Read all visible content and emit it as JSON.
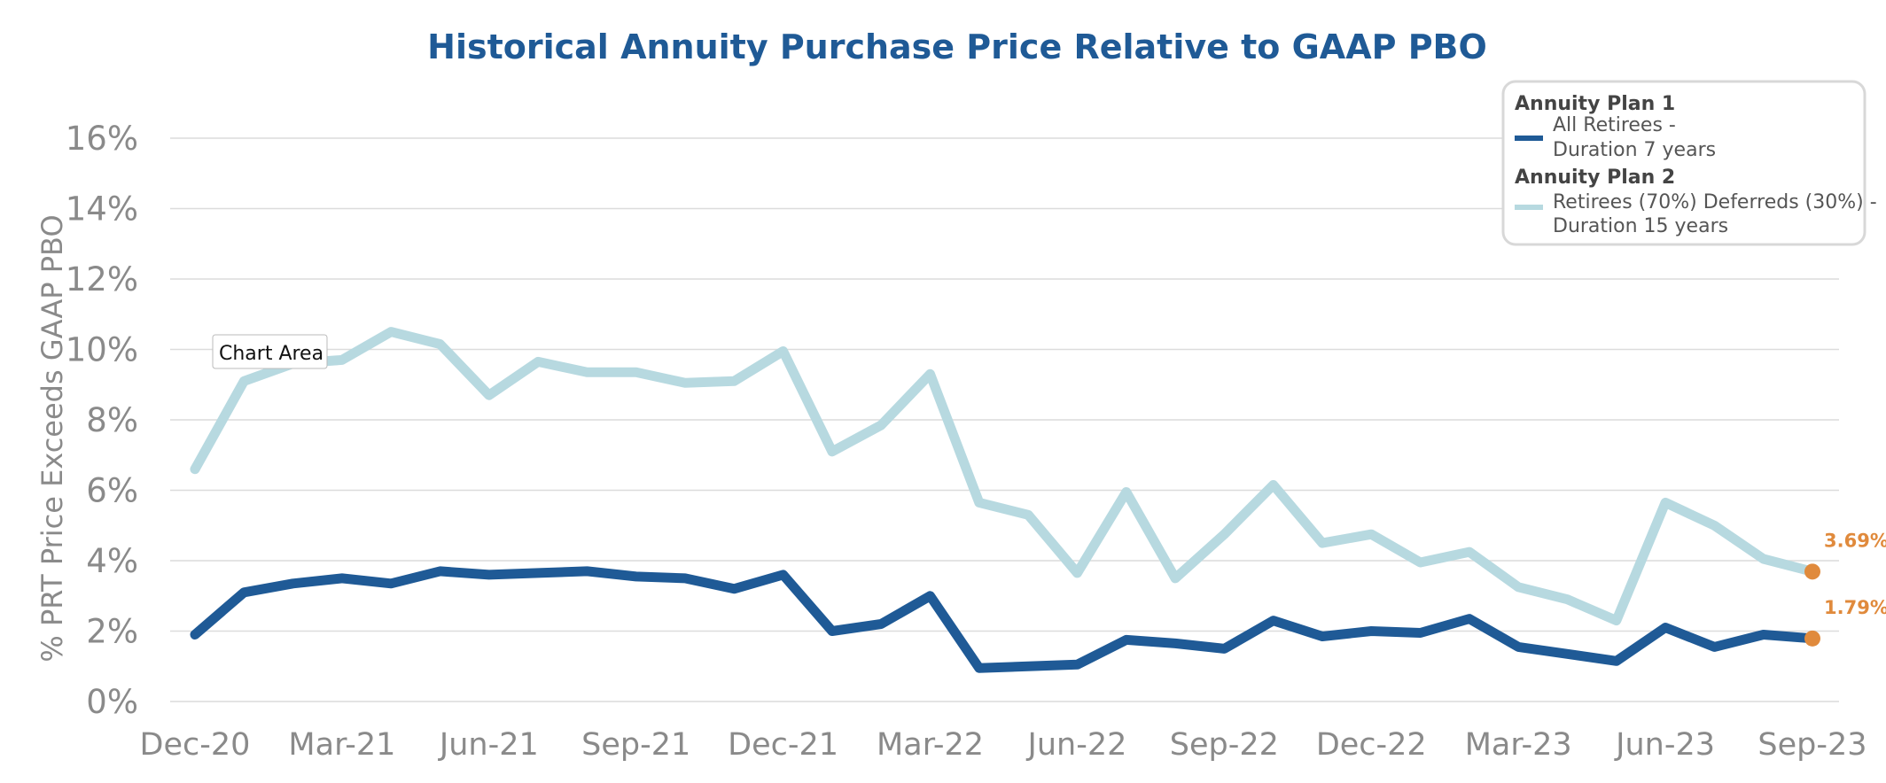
{
  "chart_data": {
    "type": "line",
    "title": "Historical Annuity Purchase Price Relative to GAAP PBO",
    "xlabel": "",
    "ylabel": "% PRT Price Exceeds GAAP PBO",
    "ylim": [
      0,
      16
    ],
    "yticks": [
      0,
      2,
      4,
      6,
      8,
      10,
      12,
      14,
      16
    ],
    "ytick_labels": [
      "0%",
      "2%",
      "4%",
      "6%",
      "8%",
      "10%",
      "12%",
      "14%",
      "16%"
    ],
    "xtick_labels": [
      "Dec-20",
      "Mar-21",
      "Jun-21",
      "Sep-21",
      "Dec-21",
      "Mar-22",
      "Jun-22",
      "Sep-22",
      "Dec-22",
      "Mar-23",
      "Jun-23",
      "Sep-23"
    ],
    "grid": true,
    "legend_position": "top-right",
    "x": [
      "Dec-20",
      "Jan-21",
      "Feb-21",
      "Mar-21",
      "Apr-21",
      "May-21",
      "Jun-21",
      "Jul-21",
      "Aug-21",
      "Sep-21",
      "Oct-21",
      "Nov-21",
      "Dec-21",
      "Jan-22",
      "Feb-22",
      "Mar-22",
      "Apr-22",
      "May-22",
      "Jun-22",
      "Jul-22",
      "Aug-22",
      "Sep-22",
      "Oct-22",
      "Nov-22",
      "Dec-22",
      "Jan-23",
      "Feb-23",
      "Mar-23",
      "Apr-23",
      "May-23",
      "Jun-23",
      "Jul-23",
      "Aug-23",
      "Sep-23"
    ],
    "series": [
      {
        "name": "Annuity Plan 1",
        "legend_heading": "Annuity Plan 1",
        "legend_lines": [
          "All Retirees -",
          "Duration 7 years"
        ],
        "color": "#1f5a96",
        "values": [
          1.9,
          3.1,
          3.35,
          3.5,
          3.35,
          3.7,
          3.6,
          3.65,
          3.7,
          3.55,
          3.5,
          3.2,
          3.6,
          2.0,
          2.2,
          3.0,
          0.95,
          1.0,
          1.05,
          1.75,
          1.65,
          1.5,
          2.3,
          1.85,
          2.0,
          1.95,
          2.35,
          1.55,
          1.35,
          1.15,
          2.1,
          1.55,
          1.9,
          1.79
        ],
        "end_label": "1.79%"
      },
      {
        "name": "Annuity Plan 2",
        "legend_heading": "Annuity Plan 2",
        "legend_lines": [
          "Retirees (70%) Deferreds (30%) -",
          "Duration 15 years"
        ],
        "color": "#b7d9e0",
        "values": [
          6.6,
          9.1,
          9.6,
          9.7,
          10.5,
          10.15,
          8.7,
          9.65,
          9.35,
          9.35,
          9.05,
          9.1,
          9.95,
          7.1,
          7.85,
          9.3,
          5.65,
          5.3,
          3.65,
          5.95,
          3.5,
          4.75,
          6.15,
          4.5,
          4.75,
          3.95,
          4.25,
          3.25,
          2.9,
          2.3,
          5.65,
          5.0,
          4.05,
          3.69
        ],
        "end_label": "3.69%"
      }
    ],
    "end_marker_color": "#e08a3c"
  },
  "tooltip": {
    "text": "Chart Area"
  }
}
